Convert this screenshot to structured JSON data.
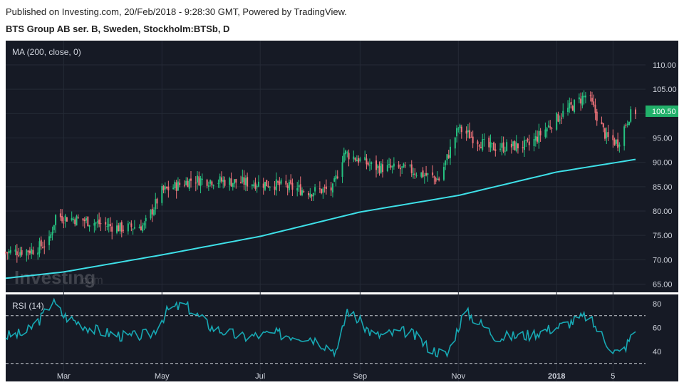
{
  "header": {
    "published": "Published on Investing.com, 20/Feb/2018 - 9:28:30 GMT, Powered by TradingView.",
    "title": "BTS Group AB ser. B, Sweden, Stockholm:BTSb, D"
  },
  "watermark": {
    "text": "Investing",
    "suffix": ".com"
  },
  "colors": {
    "background": "#161a25",
    "grid": "#252a36",
    "up": "#26c281",
    "down": "#f0737a",
    "ma": "#3ee0e8",
    "rsi": "#17a8b3",
    "price_badge": "#22b06a",
    "text": "#cfd3dc"
  },
  "chart_data": [
    {
      "type": "candlestick",
      "indicator_label": "MA (200, close, 0)",
      "x_ticks": [
        "Mar",
        "May",
        "Jul",
        "Sep",
        "Nov",
        "2018",
        "5"
      ],
      "y_ticks": [
        "65.00",
        "70.00",
        "75.00",
        "80.00",
        "85.00",
        "90.00",
        "95.00",
        "100.00",
        "105.00",
        "110.00"
      ],
      "ylim": [
        63,
        112
      ],
      "last_price": "100.50",
      "close_trend": [
        [
          "2017-01-24",
          71.5
        ],
        [
          "2017-02-10",
          72.0
        ],
        [
          "2017-02-20",
          73.8
        ],
        [
          "2017-02-24",
          79.0
        ],
        [
          "2017-03-15",
          78.0
        ],
        [
          "2017-04-05",
          76.5
        ],
        [
          "2017-04-20",
          77.0
        ],
        [
          "2017-05-01",
          84.0
        ],
        [
          "2017-05-20",
          86.5
        ],
        [
          "2017-06-15",
          86.0
        ],
        [
          "2017-07-10",
          85.5
        ],
        [
          "2017-08-01",
          84.0
        ],
        [
          "2017-08-15",
          84.5
        ],
        [
          "2017-08-22",
          92.0
        ],
        [
          "2017-09-10",
          89.0
        ],
        [
          "2017-10-01",
          88.5
        ],
        [
          "2017-10-20",
          86.5
        ],
        [
          "2017-11-01",
          97.0
        ],
        [
          "2017-11-20",
          93.0
        ],
        [
          "2017-12-15",
          93.5
        ],
        [
          "2018-01-01",
          99.0
        ],
        [
          "2018-01-20",
          104.0
        ],
        [
          "2018-02-01",
          95.0
        ],
        [
          "2018-02-08",
          94.0
        ],
        [
          "2018-02-15",
          99.5
        ],
        [
          "2018-02-19",
          100.5
        ]
      ],
      "ma200": [
        [
          "2017-01-24",
          66.2
        ],
        [
          "2017-03-01",
          67.5
        ],
        [
          "2017-05-01",
          71.0
        ],
        [
          "2017-07-01",
          74.8
        ],
        [
          "2017-09-01",
          79.8
        ],
        [
          "2017-11-01",
          83.2
        ],
        [
          "2018-01-01",
          88.0
        ],
        [
          "2018-02-19",
          90.6
        ]
      ]
    },
    {
      "type": "line",
      "indicator_label": "RSI (14)",
      "y_ticks": [
        "40",
        "60",
        "80"
      ],
      "ylim": [
        20,
        90
      ],
      "overbought": 70,
      "oversold": 30,
      "values": [
        [
          "2017-01-24",
          53
        ],
        [
          "2017-02-05",
          55
        ],
        [
          "2017-02-15",
          68
        ],
        [
          "2017-02-22",
          82
        ],
        [
          "2017-03-01",
          70
        ],
        [
          "2017-03-20",
          58
        ],
        [
          "2017-04-10",
          52
        ],
        [
          "2017-04-25",
          55
        ],
        [
          "2017-05-05",
          75
        ],
        [
          "2017-05-15",
          79
        ],
        [
          "2017-06-01",
          60
        ],
        [
          "2017-06-20",
          52
        ],
        [
          "2017-07-10",
          55
        ],
        [
          "2017-08-01",
          52
        ],
        [
          "2017-08-18",
          40
        ],
        [
          "2017-08-24",
          75
        ],
        [
          "2017-09-10",
          53
        ],
        [
          "2017-10-01",
          57
        ],
        [
          "2017-10-15",
          42
        ],
        [
          "2017-10-25",
          37
        ],
        [
          "2017-11-05",
          74
        ],
        [
          "2017-11-25",
          52
        ],
        [
          "2017-12-15",
          54
        ],
        [
          "2018-01-05",
          62
        ],
        [
          "2018-01-20",
          70
        ],
        [
          "2018-02-05",
          41
        ],
        [
          "2018-02-10",
          38
        ],
        [
          "2018-02-19",
          58
        ]
      ]
    }
  ]
}
